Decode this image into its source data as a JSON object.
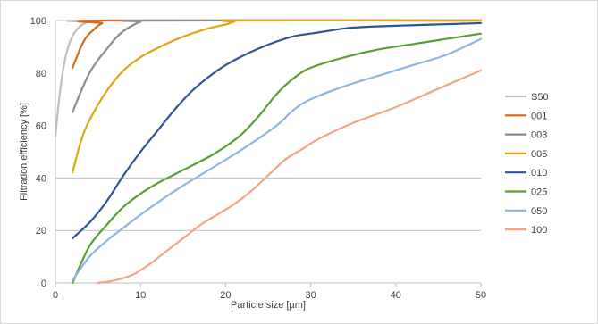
{
  "chart_data": {
    "type": "line",
    "title": "",
    "xlabel": "Particle size [µm]",
    "ylabel": "Filtration efficiency [%]",
    "xlim": [
      0,
      50
    ],
    "ylim": [
      0,
      100
    ],
    "x_ticks": [
      "0",
      "10",
      "20",
      "30",
      "40",
      "50"
    ],
    "y_ticks": [
      "0",
      "20",
      "40",
      "60",
      "80",
      "100"
    ],
    "gridlines_y": [
      20,
      40,
      100
    ],
    "legend_position": "right",
    "series": [
      {
        "name": "S50",
        "color": "#bfbfbf",
        "points": [
          [
            0,
            56
          ],
          [
            0.5,
            72
          ],
          [
            1,
            83
          ],
          [
            1.5,
            90
          ],
          [
            2,
            94
          ],
          [
            2.5,
            96.5
          ],
          [
            3,
            98
          ],
          [
            3.5,
            99
          ],
          [
            4,
            99.5
          ],
          [
            5,
            100
          ],
          [
            50,
            100
          ]
        ]
      },
      {
        "name": "001",
        "color": "#d2691e",
        "points": [
          [
            2,
            82
          ],
          [
            2.5,
            86
          ],
          [
            3,
            90
          ],
          [
            3.5,
            93
          ],
          [
            4,
            95
          ],
          [
            4.5,
            96.5
          ],
          [
            5,
            98
          ],
          [
            5.5,
            99
          ],
          [
            6,
            100
          ],
          [
            50,
            100
          ]
        ]
      },
      {
        "name": "003",
        "color": "#8c8c8c",
        "points": [
          [
            2,
            65
          ],
          [
            3,
            73
          ],
          [
            4,
            80
          ],
          [
            5,
            85
          ],
          [
            6,
            89
          ],
          [
            7,
            93
          ],
          [
            8,
            96
          ],
          [
            9,
            98
          ],
          [
            10,
            99.5
          ],
          [
            11,
            100
          ],
          [
            50,
            100
          ]
        ]
      },
      {
        "name": "005",
        "color": "#dfa514",
        "points": [
          [
            2,
            42
          ],
          [
            3,
            54
          ],
          [
            4,
            62
          ],
          [
            6,
            73
          ],
          [
            8,
            81
          ],
          [
            10,
            86
          ],
          [
            12,
            89.5
          ],
          [
            14,
            92.5
          ],
          [
            16,
            95
          ],
          [
            18,
            97
          ],
          [
            20,
            98.5
          ],
          [
            21,
            99.5
          ],
          [
            22,
            100
          ],
          [
            50,
            100
          ]
        ]
      },
      {
        "name": "010",
        "color": "#2f5597",
        "points": [
          [
            2,
            17
          ],
          [
            4,
            23
          ],
          [
            6,
            31
          ],
          [
            8,
            41
          ],
          [
            10,
            50
          ],
          [
            12,
            58
          ],
          [
            14,
            66
          ],
          [
            16,
            73
          ],
          [
            18,
            78.5
          ],
          [
            20,
            83
          ],
          [
            22,
            86.5
          ],
          [
            24,
            89.5
          ],
          [
            26,
            92
          ],
          [
            28,
            94
          ],
          [
            30,
            95
          ],
          [
            32,
            96
          ],
          [
            34,
            97
          ],
          [
            36,
            97.5
          ],
          [
            40,
            98
          ],
          [
            45,
            98.5
          ],
          [
            50,
            99
          ]
        ]
      },
      {
        "name": "025",
        "color": "#5a9e32",
        "points": [
          [
            2,
            0
          ],
          [
            4,
            14
          ],
          [
            6,
            22
          ],
          [
            8,
            29
          ],
          [
            10,
            34
          ],
          [
            12,
            38
          ],
          [
            15,
            43
          ],
          [
            18,
            48
          ],
          [
            20,
            52
          ],
          [
            22,
            57
          ],
          [
            24,
            64
          ],
          [
            26,
            72
          ],
          [
            28,
            78
          ],
          [
            30,
            82
          ],
          [
            34,
            86
          ],
          [
            38,
            89
          ],
          [
            42,
            91
          ],
          [
            46,
            93
          ],
          [
            50,
            95
          ]
        ]
      },
      {
        "name": "050",
        "color": "#8eb4e3",
        "points": [
          [
            2,
            1
          ],
          [
            4,
            10
          ],
          [
            6,
            16
          ],
          [
            8,
            21
          ],
          [
            10,
            26
          ],
          [
            14,
            35
          ],
          [
            18,
            43
          ],
          [
            22,
            51
          ],
          [
            26,
            60
          ],
          [
            28,
            66
          ],
          [
            30,
            70
          ],
          [
            34,
            75
          ],
          [
            38,
            79
          ],
          [
            42,
            83
          ],
          [
            46,
            87
          ],
          [
            50,
            93
          ]
        ]
      },
      {
        "name": "100",
        "color": "#f4a582",
        "points": [
          [
            5,
            0
          ],
          [
            7,
            1
          ],
          [
            9,
            3
          ],
          [
            11,
            7
          ],
          [
            13,
            12
          ],
          [
            15,
            17
          ],
          [
            17,
            22
          ],
          [
            19,
            26
          ],
          [
            21,
            30
          ],
          [
            23,
            35
          ],
          [
            25,
            41
          ],
          [
            27,
            47
          ],
          [
            29,
            51
          ],
          [
            31,
            55
          ],
          [
            35,
            61
          ],
          [
            40,
            67
          ],
          [
            45,
            74
          ],
          [
            50,
            81
          ]
        ]
      }
    ]
  }
}
